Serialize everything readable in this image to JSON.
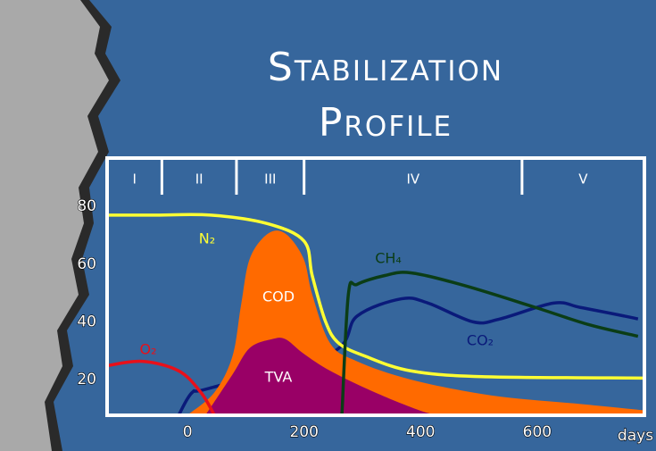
{
  "chart_data": {
    "type": "line",
    "title": [
      "Stabilization",
      "Profile"
    ],
    "x_label": "days",
    "xlim": [
      -138,
      784
    ],
    "xticks": [
      0,
      200,
      400,
      600
    ],
    "ylim": [
      7.6,
      96.8
    ],
    "yticks": [
      20,
      40,
      60,
      80
    ],
    "phases": [
      "I",
      "II",
      "III",
      "IV",
      "V"
    ],
    "phase_bounds": [
      -44,
      84,
      200,
      574
    ],
    "series": [
      {
        "name": "CO₂",
        "color": "#0a1a7a",
        "kind": "line",
        "x": [
          -15,
          8,
          38,
          245,
          291,
          367,
          413,
          490,
          536,
          628,
          674,
          750,
          773
        ],
        "values": [
          7.7,
          15.5,
          17,
          29,
          42,
          48,
          46.5,
          40,
          41,
          46.5,
          45,
          42,
          41
        ]
      },
      {
        "name": "COD",
        "color": "#ff6a00",
        "kind": "area",
        "x": [
          0,
          46,
          77,
          92,
          107,
          138,
          168,
          199,
          214,
          245,
          291,
          383,
          521,
          674,
          784
        ],
        "values": [
          7.7,
          15.5,
          28,
          46,
          62,
          70.6,
          70.6,
          62,
          49.5,
          32.5,
          26.3,
          20,
          14.5,
          11.5,
          9.3
        ]
      },
      {
        "name": "TVA",
        "color": "#990066",
        "kind": "area",
        "x": [
          31,
          77,
          107,
          145,
          168,
          199,
          245,
          322,
          398,
          429
        ],
        "values": [
          7.7,
          21.7,
          31,
          34,
          34,
          29,
          23,
          15.5,
          9.3,
          7.7
        ]
      },
      {
        "name": "O₂",
        "color": "#e8101a",
        "kind": "line",
        "x": [
          -138,
          -77,
          -15,
          23,
          46
        ],
        "values": [
          24.8,
          26.3,
          23,
          15.5,
          7.7
        ]
      },
      {
        "name": "N₂",
        "color": "#ffff33",
        "kind": "line",
        "x": [
          -138,
          -60,
          40,
          138,
          200,
          214,
          237,
          260,
          306,
          383,
          505,
          784
        ],
        "values": [
          77,
          77,
          77,
          74,
          68,
          56,
          40,
          32.5,
          28,
          23,
          21,
          20.5
        ]
      },
      {
        "name": "CH₄",
        "color": "#0b3d16",
        "kind": "line",
        "x": [
          265,
          276,
          291,
          337,
          383,
          475,
          597,
          689,
          773
        ],
        "values": [
          8,
          49.5,
          53,
          56,
          57,
          52.6,
          45,
          39,
          35
        ]
      }
    ]
  }
}
